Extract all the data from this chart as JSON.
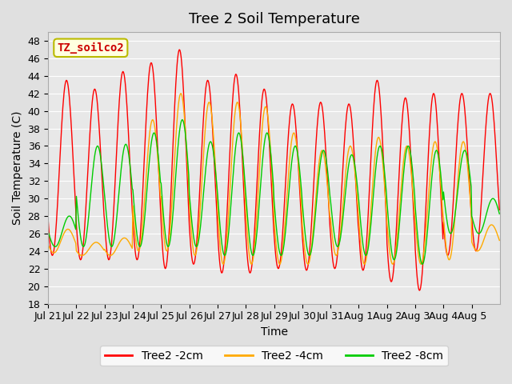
{
  "title": "Tree 2 Soil Temperature",
  "xlabel": "Time",
  "ylabel": "Soil Temperature (C)",
  "annotation": "TZ_soilco2",
  "ylim": [
    18,
    49
  ],
  "yticks": [
    18,
    20,
    22,
    24,
    26,
    28,
    30,
    32,
    34,
    36,
    38,
    40,
    42,
    44,
    46,
    48
  ],
  "xtick_labels": [
    "Jul 21",
    "Jul 22",
    "Jul 23",
    "Jul 24",
    "Jul 25",
    "Jul 26",
    "Jul 27",
    "Jul 28",
    "Jul 29",
    "Jul 30",
    "Jul 31",
    "Aug 1",
    "Aug 2",
    "Aug 3",
    "Aug 4",
    "Aug 5"
  ],
  "background_color": "#e0e0e0",
  "plot_bg_color": "#e8e8e8",
  "grid_color": "#ffffff",
  "colors": {
    "2cm": "#ff0000",
    "4cm": "#ffaa00",
    "8cm": "#00cc00"
  },
  "legend_labels": [
    "Tree2 -2cm",
    "Tree2 -4cm",
    "Tree2 -8cm"
  ],
  "title_fontsize": 13,
  "label_fontsize": 10,
  "tick_fontsize": 9,
  "n_days": 16,
  "daily_cycles": {
    "peaks_2cm": [
      43.5,
      42.5,
      44.5,
      45.5,
      47.0,
      43.5,
      44.2,
      42.5,
      40.8,
      41.0,
      40.8,
      43.5,
      41.5,
      42.0,
      42.0,
      42.0
    ],
    "troughs_2cm": [
      23.5,
      23.0,
      23.0,
      23.0,
      22.0,
      22.5,
      21.5,
      21.5,
      22.0,
      21.8,
      22.0,
      21.8,
      20.5,
      19.5,
      23.5,
      24.0
    ],
    "peaks_4cm": [
      26.5,
      25.0,
      25.5,
      39.0,
      42.0,
      41.0,
      41.0,
      40.5,
      37.5,
      35.5,
      36.0,
      37.0,
      36.0,
      36.5,
      36.5,
      27.0
    ],
    "troughs_4cm": [
      23.8,
      23.5,
      23.5,
      24.0,
      24.0,
      23.5,
      22.5,
      22.5,
      22.5,
      22.5,
      23.5,
      22.5,
      22.5,
      22.5,
      23.0,
      24.0
    ],
    "peaks_8cm": [
      28.0,
      36.0,
      36.2,
      37.5,
      39.0,
      36.5,
      37.5,
      37.5,
      36.0,
      35.5,
      35.0,
      36.0,
      36.0,
      35.5,
      35.5,
      30.0
    ],
    "troughs_8cm": [
      24.5,
      24.5,
      24.5,
      24.5,
      24.5,
      24.5,
      23.5,
      23.5,
      23.5,
      23.5,
      24.5,
      23.5,
      23.0,
      22.5,
      26.0,
      26.0
    ]
  }
}
